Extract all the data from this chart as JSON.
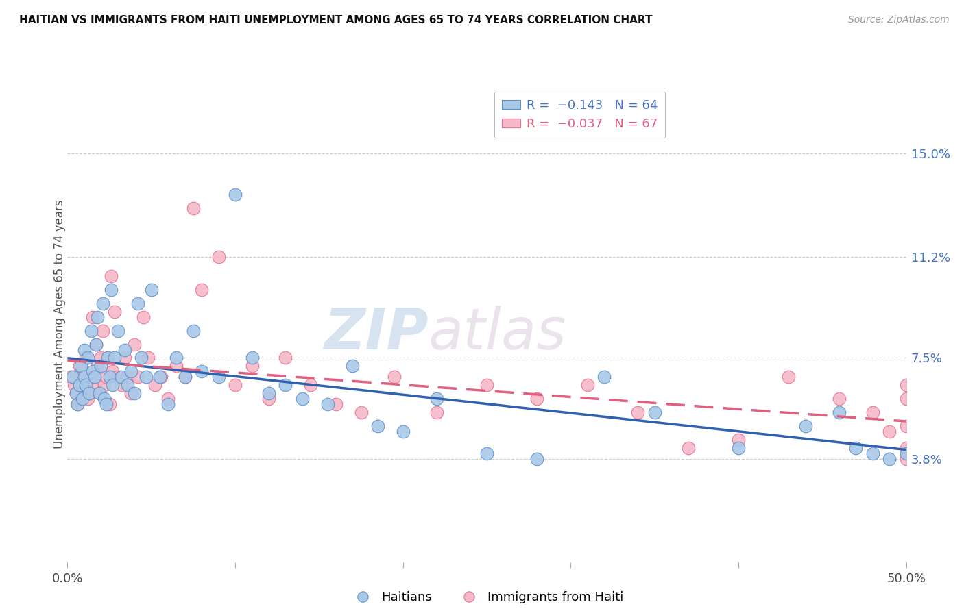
{
  "title": "HAITIAN VS IMMIGRANTS FROM HAITI UNEMPLOYMENT AMONG AGES 65 TO 74 YEARS CORRELATION CHART",
  "source": "Source: ZipAtlas.com",
  "ylabel": "Unemployment Among Ages 65 to 74 years",
  "xlim": [
    0.0,
    0.5
  ],
  "ylim": [
    0.0,
    0.175
  ],
  "xticks": [
    0.0,
    0.1,
    0.2,
    0.3,
    0.4,
    0.5
  ],
  "xticklabels": [
    "0.0%",
    "",
    "",
    "",
    "",
    "50.0%"
  ],
  "ytick_positions": [
    0.038,
    0.075,
    0.112,
    0.15
  ],
  "ytick_labels": [
    "3.8%",
    "7.5%",
    "11.2%",
    "15.0%"
  ],
  "watermark_zip": "ZIP",
  "watermark_atlas": "atlas",
  "blue_color": "#A8C8E8",
  "pink_color": "#F5B8C8",
  "blue_edge_color": "#6090C8",
  "pink_edge_color": "#E87090",
  "blue_line_color": "#3060B0",
  "pink_line_color": "#E06080",
  "background_color": "#FFFFFF",
  "grid_color": "#CCCCCC",
  "haitians_x": [
    0.003,
    0.005,
    0.006,
    0.007,
    0.008,
    0.009,
    0.01,
    0.01,
    0.011,
    0.012,
    0.013,
    0.014,
    0.015,
    0.016,
    0.017,
    0.018,
    0.019,
    0.02,
    0.021,
    0.022,
    0.023,
    0.024,
    0.025,
    0.026,
    0.027,
    0.028,
    0.03,
    0.032,
    0.034,
    0.036,
    0.038,
    0.04,
    0.042,
    0.044,
    0.047,
    0.05,
    0.055,
    0.06,
    0.065,
    0.07,
    0.075,
    0.08,
    0.09,
    0.1,
    0.11,
    0.12,
    0.13,
    0.14,
    0.155,
    0.17,
    0.185,
    0.2,
    0.22,
    0.25,
    0.28,
    0.32,
    0.35,
    0.4,
    0.44,
    0.46,
    0.47,
    0.48,
    0.49,
    0.5
  ],
  "haitians_y": [
    0.068,
    0.062,
    0.058,
    0.065,
    0.072,
    0.06,
    0.068,
    0.078,
    0.065,
    0.075,
    0.062,
    0.085,
    0.07,
    0.068,
    0.08,
    0.09,
    0.062,
    0.072,
    0.095,
    0.06,
    0.058,
    0.075,
    0.068,
    0.1,
    0.065,
    0.075,
    0.085,
    0.068,
    0.078,
    0.065,
    0.07,
    0.062,
    0.095,
    0.075,
    0.068,
    0.1,
    0.068,
    0.058,
    0.075,
    0.068,
    0.085,
    0.07,
    0.068,
    0.135,
    0.075,
    0.062,
    0.065,
    0.06,
    0.058,
    0.072,
    0.05,
    0.048,
    0.06,
    0.04,
    0.038,
    0.068,
    0.055,
    0.042,
    0.05,
    0.055,
    0.042,
    0.04,
    0.038,
    0.04
  ],
  "immigrants_x": [
    0.002,
    0.004,
    0.005,
    0.006,
    0.007,
    0.008,
    0.009,
    0.01,
    0.011,
    0.012,
    0.013,
    0.014,
    0.015,
    0.016,
    0.017,
    0.018,
    0.019,
    0.02,
    0.021,
    0.022,
    0.023,
    0.024,
    0.025,
    0.026,
    0.027,
    0.028,
    0.03,
    0.032,
    0.034,
    0.036,
    0.038,
    0.04,
    0.042,
    0.045,
    0.048,
    0.052,
    0.056,
    0.06,
    0.065,
    0.07,
    0.075,
    0.08,
    0.09,
    0.1,
    0.11,
    0.12,
    0.13,
    0.145,
    0.16,
    0.175,
    0.195,
    0.22,
    0.25,
    0.28,
    0.31,
    0.34,
    0.37,
    0.4,
    0.43,
    0.46,
    0.48,
    0.49,
    0.5,
    0.5,
    0.5,
    0.5,
    0.5
  ],
  "immigrants_y": [
    0.068,
    0.065,
    0.062,
    0.058,
    0.072,
    0.06,
    0.065,
    0.068,
    0.075,
    0.06,
    0.062,
    0.068,
    0.09,
    0.065,
    0.08,
    0.072,
    0.062,
    0.075,
    0.085,
    0.065,
    0.068,
    0.075,
    0.058,
    0.105,
    0.07,
    0.092,
    0.068,
    0.065,
    0.075,
    0.068,
    0.062,
    0.08,
    0.068,
    0.09,
    0.075,
    0.065,
    0.068,
    0.06,
    0.072,
    0.068,
    0.13,
    0.1,
    0.112,
    0.065,
    0.072,
    0.06,
    0.075,
    0.065,
    0.058,
    0.055,
    0.068,
    0.055,
    0.065,
    0.06,
    0.065,
    0.055,
    0.042,
    0.045,
    0.068,
    0.06,
    0.055,
    0.048,
    0.042,
    0.038,
    0.06,
    0.065,
    0.05
  ]
}
